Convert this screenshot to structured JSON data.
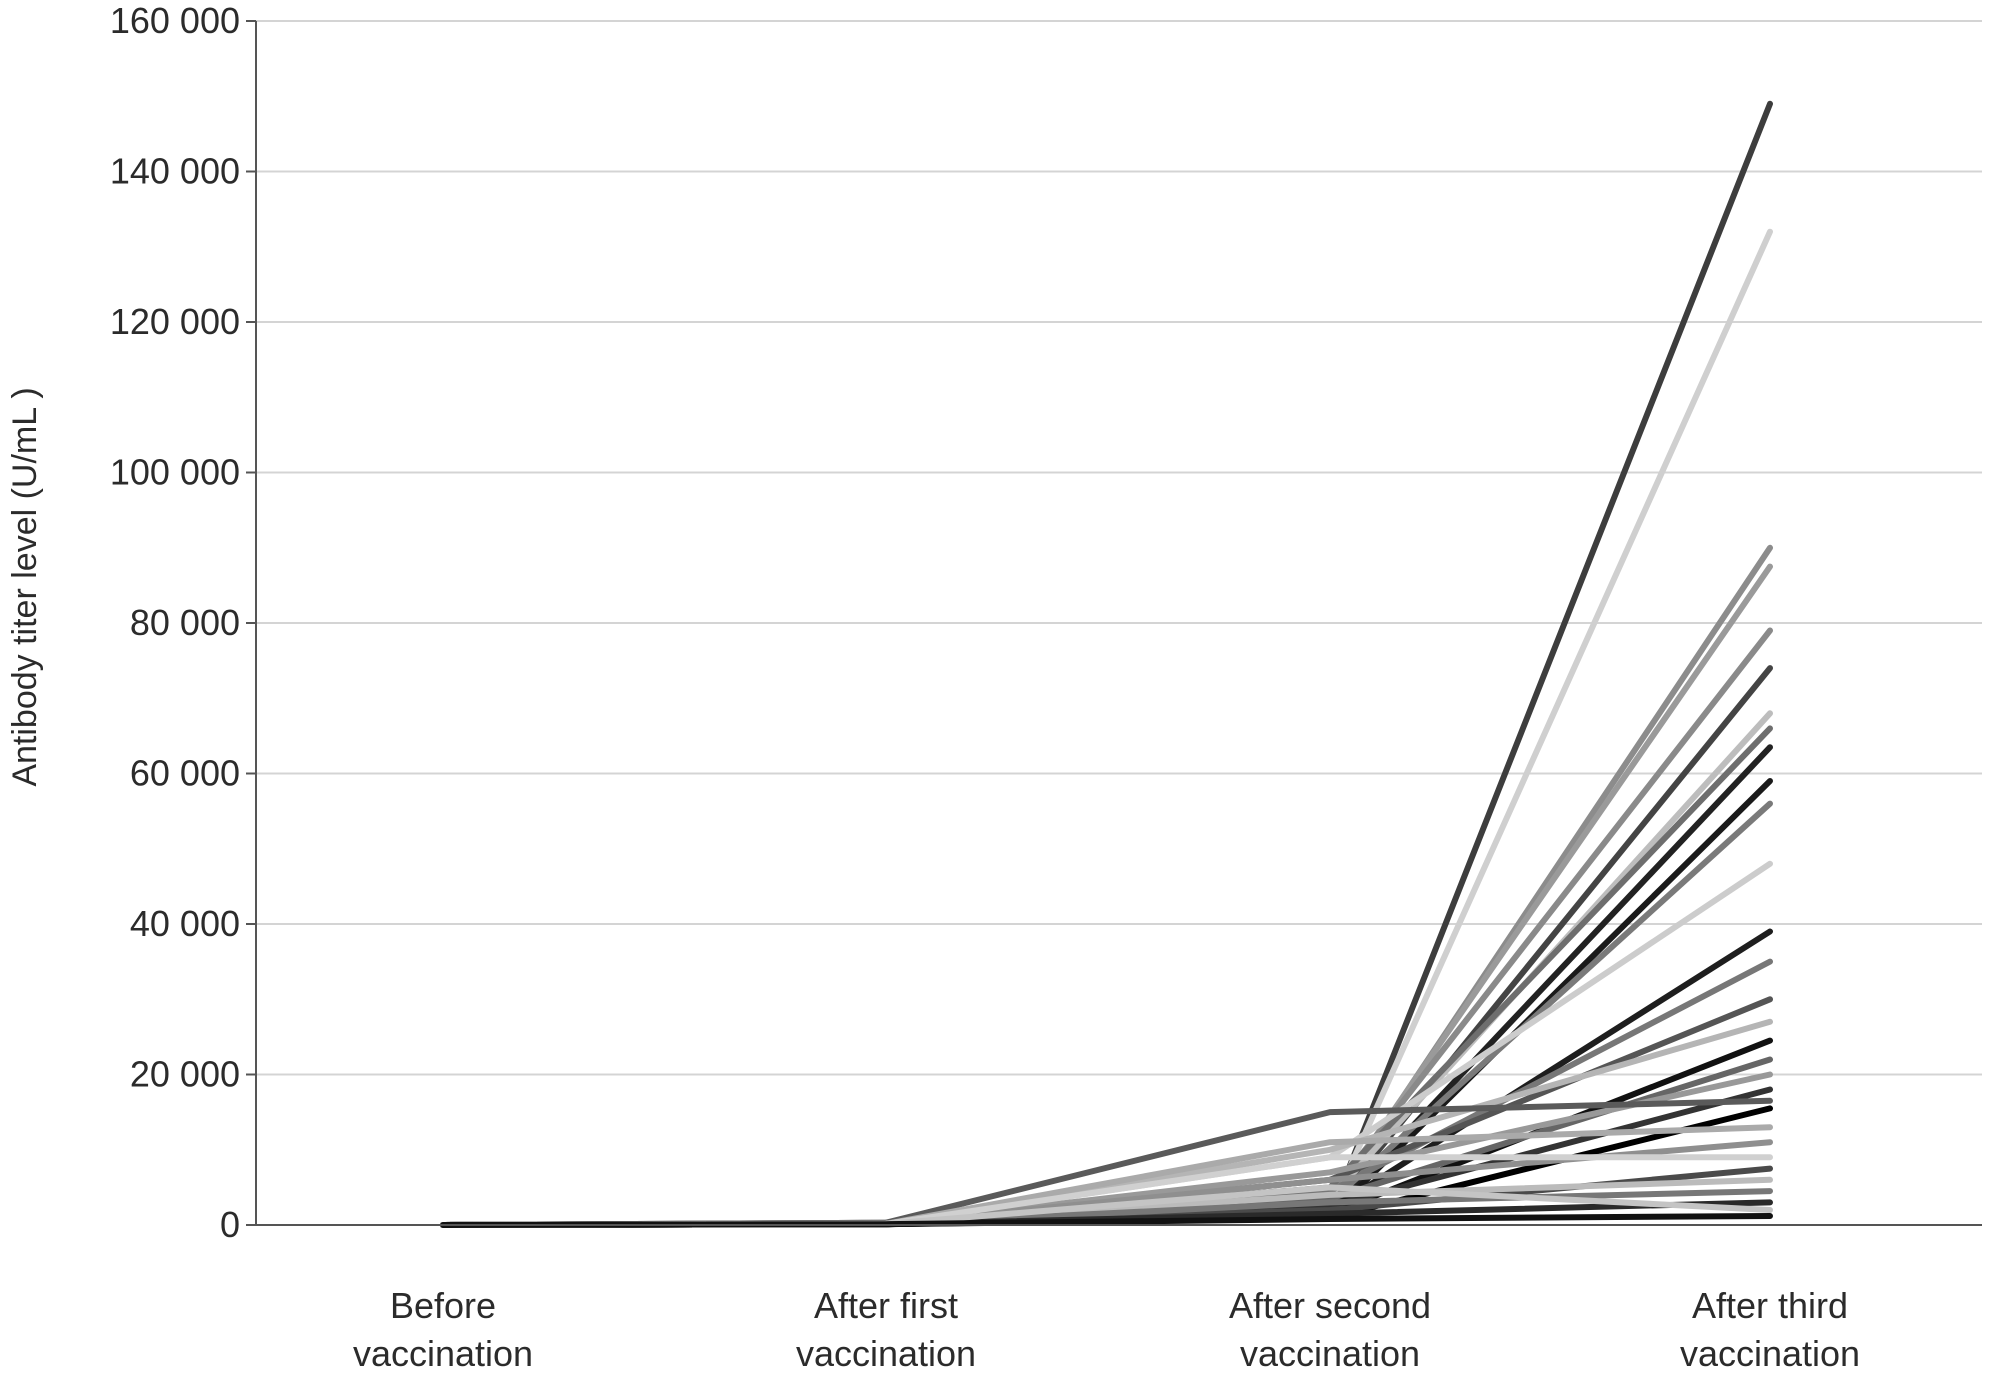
{
  "chart_data": {
    "type": "line",
    "ylabel": "Antibody titer level (U/mL )",
    "ylim": [
      0,
      160000
    ],
    "yticks": [
      0,
      20000,
      40000,
      60000,
      80000,
      100000,
      120000,
      140000,
      160000
    ],
    "ytick_labels": [
      "0",
      "20 000",
      "40 000",
      "60 000",
      "80 000",
      "100 000",
      "120 000",
      "140 000",
      "160 000"
    ],
    "categories": [
      [
        "Before",
        "vaccination"
      ],
      [
        "After first",
        "vaccination"
      ],
      [
        "After second",
        "vaccination"
      ],
      [
        "After third",
        "vaccination"
      ]
    ],
    "grid": true,
    "series": [
      {
        "color": "#3d3d3d",
        "values": [
          0,
          300,
          1200,
          149000
        ]
      },
      {
        "color": "#cfcfcf",
        "values": [
          0,
          250,
          1800,
          132000
        ]
      },
      {
        "color": "#8c8c8c",
        "values": [
          0,
          200,
          2500,
          90000
        ]
      },
      {
        "color": "#9a9a9a",
        "values": [
          0,
          300,
          3000,
          87500
        ]
      },
      {
        "color": "#8a8a8a",
        "values": [
          0,
          250,
          4000,
          79000
        ]
      },
      {
        "color": "#444444",
        "values": [
          0,
          200,
          2000,
          74000
        ]
      },
      {
        "color": "#bdbdbd",
        "values": [
          0,
          150,
          3500,
          68000
        ]
      },
      {
        "color": "#6e6e6e",
        "values": [
          0,
          200,
          5000,
          66000
        ]
      },
      {
        "color": "#222222",
        "values": [
          0,
          150,
          1500,
          63500
        ]
      },
      {
        "color": "#1a1a1a",
        "values": [
          0,
          100,
          1200,
          59000
        ]
      },
      {
        "color": "#7a7a7a",
        "values": [
          0,
          200,
          3000,
          56000
        ]
      },
      {
        "color": "#cccccc",
        "values": [
          0,
          150,
          9000,
          48000
        ]
      },
      {
        "color": "#1e1e1e",
        "values": [
          0,
          250,
          2000,
          39000
        ]
      },
      {
        "color": "#777777",
        "values": [
          0,
          200,
          4500,
          35000
        ]
      },
      {
        "color": "#555555",
        "values": [
          0,
          150,
          6000,
          30000
        ]
      },
      {
        "color": "#b5b5b5",
        "values": [
          0,
          100,
          10000,
          27000
        ]
      },
      {
        "color": "#111111",
        "values": [
          0,
          150,
          1500,
          24500
        ]
      },
      {
        "color": "#666666",
        "values": [
          0,
          200,
          3500,
          22000
        ]
      },
      {
        "color": "#999999",
        "values": [
          0,
          150,
          7000,
          20000
        ]
      },
      {
        "color": "#333333",
        "values": [
          0,
          100,
          2500,
          18000
        ]
      },
      {
        "color": "#5a5a5a",
        "values": [
          0,
          300,
          15000,
          16500
        ]
      },
      {
        "color": "#000000",
        "values": [
          0,
          100,
          1000,
          15500
        ]
      },
      {
        "color": "#aaaaaa",
        "values": [
          0,
          150,
          11000,
          13000
        ]
      },
      {
        "color": "#8f8f8f",
        "values": [
          0,
          200,
          6000,
          11000
        ]
      },
      {
        "color": "#d0d0d0",
        "values": [
          0,
          150,
          9000,
          9000
        ]
      },
      {
        "color": "#4a4a4a",
        "values": [
          0,
          100,
          2000,
          7500
        ]
      },
      {
        "color": "#bbbbbb",
        "values": [
          0,
          150,
          4000,
          6000
        ]
      },
      {
        "color": "#777777",
        "values": [
          0,
          100,
          3000,
          4500
        ]
      },
      {
        "color": "#2a2a2a",
        "values": [
          0,
          100,
          1500,
          3000
        ]
      },
      {
        "color": "#c4c4c4",
        "values": [
          0,
          150,
          5000,
          2000
        ]
      },
      {
        "color": "#111111",
        "values": [
          0,
          100,
          800,
          1200
        ]
      }
    ]
  }
}
